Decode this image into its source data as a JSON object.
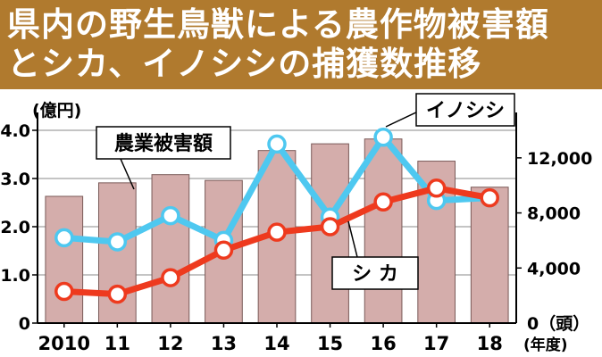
{
  "title": {
    "line1": "県内の野生鳥獣による農作物被害額",
    "line2": "とシカ、イノシシの捕獲数推移"
  },
  "chart_data": {
    "type": "bar",
    "categories": [
      "2010",
      "11",
      "12",
      "13",
      "14",
      "15",
      "16",
      "17",
      "18"
    ],
    "x_unit": "(年度)",
    "left_axis": {
      "unit": "(億円)",
      "ylim": [
        0,
        4.0
      ],
      "ticks": [
        "0",
        "1.0",
        "2.0",
        "3.0",
        "4.0"
      ]
    },
    "right_axis": {
      "unit": "0（頭）",
      "ylim": [
        0,
        14000
      ],
      "ticks": [
        "4,000",
        "8,000",
        "12,000"
      ]
    },
    "series": [
      {
        "name": "農業被害額",
        "type": "bar",
        "axis": "left",
        "color": "#d4adab",
        "values": [
          2.63,
          2.91,
          3.08,
          2.96,
          3.58,
          3.72,
          3.82,
          3.36,
          2.82
        ]
      },
      {
        "name": "イノシシ",
        "type": "line",
        "axis": "right",
        "color": "#4ec8f0",
        "values": [
          6200,
          5900,
          7800,
          6000,
          13000,
          7700,
          13500,
          8900,
          9100
        ]
      },
      {
        "name": "シ カ",
        "type": "line",
        "axis": "right",
        "color": "#ee3a1e",
        "values": [
          2300,
          2100,
          3300,
          5300,
          6600,
          7000,
          8800,
          9800,
          9100
        ]
      }
    ],
    "grid": true
  }
}
